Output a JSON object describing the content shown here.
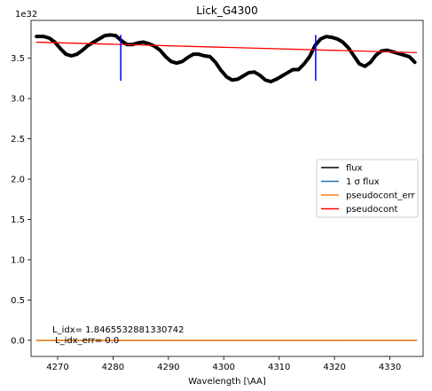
{
  "chart_data": {
    "type": "line",
    "title": "Lick_G4300",
    "xlabel": "Wavelength [\\AA]",
    "ylabel": "",
    "y_offset_label": "1e32",
    "xlim": [
      4265.2,
      4336.0
    ],
    "ylim": [
      -0.2,
      3.97
    ],
    "x_ticks": [
      4270,
      4280,
      4290,
      4300,
      4310,
      4320,
      4330
    ],
    "x_tick_labels": [
      "4270",
      "4280",
      "4290",
      "4300",
      "4310",
      "4320",
      "4330"
    ],
    "y_ticks": [
      0.0,
      0.5,
      1.0,
      1.5,
      2.0,
      2.5,
      3.0,
      3.5
    ],
    "y_tick_labels": [
      "0.0",
      "0.5",
      "1.0",
      "1.5",
      "2.0",
      "2.5",
      "3.0",
      "3.5"
    ],
    "grid": false,
    "legend_position": "center-right",
    "series": [
      {
        "name": "flux",
        "color": "#000000",
        "x": [
          4266.2,
          4267.5,
          4268.5,
          4269.5,
          4270.5,
          4271.5,
          4272.5,
          4273.5,
          4274.5,
          4275.5,
          4276.5,
          4277.5,
          4278.5,
          4279.5,
          4280.5,
          4281.5,
          4282.5,
          4283.5,
          4284.5,
          4285.5,
          4286.5,
          4287.5,
          4288.5,
          4289.5,
          4290.5,
          4291.5,
          4292.5,
          4293.5,
          4294.5,
          4295.5,
          4296.5,
          4297.5,
          4298.5,
          4299.5,
          4300.5,
          4301.5,
          4302.5,
          4303.5,
          4304.5,
          4305.5,
          4306.5,
          4307.5,
          4308.5,
          4309.5,
          4310.5,
          4311.5,
          4312.5,
          4313.5,
          4314.5,
          4315.5,
          4316.5,
          4317.5,
          4318.5,
          4319.5,
          4320.5,
          4321.5,
          4322.5,
          4323.5,
          4324.5,
          4325.5,
          4326.5,
          4327.5,
          4328.5,
          4329.5,
          4330.5,
          4331.5,
          4332.5,
          4333.5,
          4334.5
        ],
        "y": [
          3.77,
          3.77,
          3.75,
          3.7,
          3.62,
          3.55,
          3.53,
          3.55,
          3.6,
          3.66,
          3.7,
          3.74,
          3.78,
          3.79,
          3.78,
          3.72,
          3.67,
          3.67,
          3.69,
          3.7,
          3.68,
          3.65,
          3.6,
          3.52,
          3.46,
          3.44,
          3.46,
          3.51,
          3.55,
          3.55,
          3.53,
          3.52,
          3.45,
          3.35,
          3.27,
          3.23,
          3.24,
          3.28,
          3.32,
          3.33,
          3.29,
          3.23,
          3.21,
          3.24,
          3.28,
          3.32,
          3.36,
          3.36,
          3.43,
          3.52,
          3.66,
          3.74,
          3.77,
          3.76,
          3.74,
          3.7,
          3.63,
          3.53,
          3.43,
          3.4,
          3.45,
          3.54,
          3.59,
          3.6,
          3.58,
          3.56,
          3.54,
          3.52,
          3.45
        ]
      },
      {
        "name": "1 σ flux",
        "color": "#1f77b4",
        "x": [
          4266.2,
          4334.8
        ],
        "y": [
          0.0,
          0.0
        ]
      },
      {
        "name": "pseudocont_err",
        "color": "#ff7f0e",
        "x": [
          4266.2,
          4334.8
        ],
        "y": [
          0.0,
          0.0
        ]
      },
      {
        "name": "pseudocont",
        "color": "#ff0000",
        "x": [
          4266.2,
          4334.8
        ],
        "y": [
          3.7,
          3.57
        ]
      }
    ],
    "markers": [
      {
        "x": 4281.4,
        "y0": 3.22,
        "y1": 3.79,
        "color": "#0000ff"
      },
      {
        "x": 4316.6,
        "y0": 3.22,
        "y1": 3.79,
        "color": "#0000ff"
      }
    ],
    "annotations": [
      "L_idx= 1.8465532881330742",
      "L_idx_err= 0.0"
    ]
  }
}
